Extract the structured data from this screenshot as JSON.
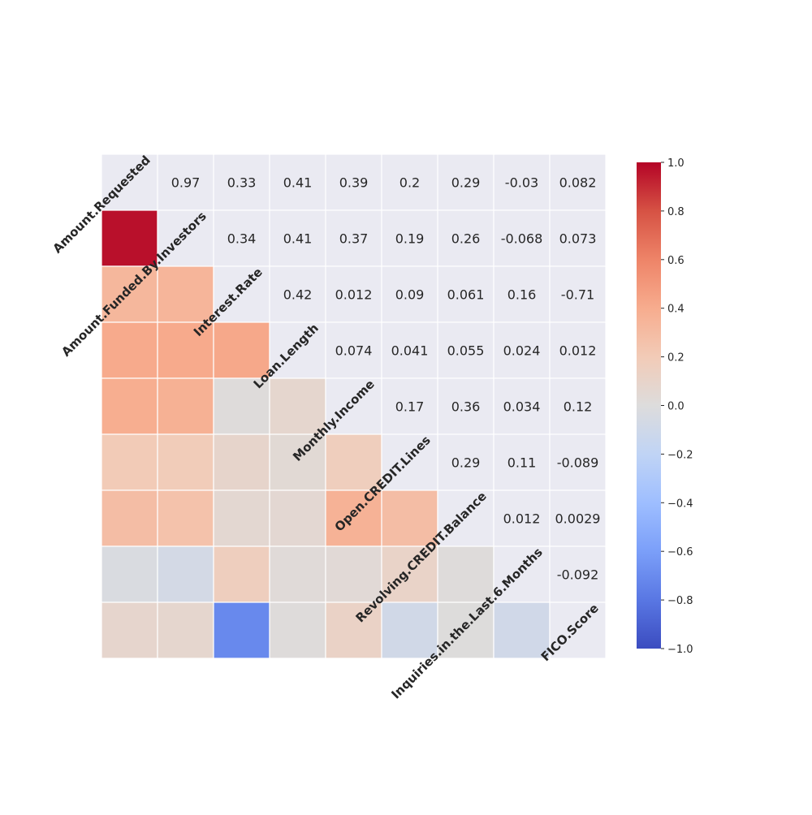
{
  "chart_data": {
    "type": "heatmap",
    "title": "",
    "variables": [
      "Amount.Requested",
      "Amount.Funded.By.Investors",
      "Interest.Rate",
      "Loan.Length",
      "Monthly.Income",
      "Open.CREDIT.Lines",
      "Revolving.CREDIT.Balance",
      "Inquiries.in.the.Last.6.Months",
      "FICO.Score"
    ],
    "upper_triangle_labels": [
      [
        "",
        "0.97",
        "0.33",
        "0.41",
        "0.39",
        "0.2",
        "0.29",
        "-0.03",
        "0.082"
      ],
      [
        "",
        "",
        "0.34",
        "0.41",
        "0.37",
        "0.19",
        "0.26",
        "-0.068",
        "0.073"
      ],
      [
        "",
        "",
        "",
        "0.42",
        "0.012",
        "0.09",
        "0.061",
        "0.16",
        "-0.71"
      ],
      [
        "",
        "",
        "",
        "",
        "0.074",
        "0.041",
        "0.055",
        "0.024",
        "0.012"
      ],
      [
        "",
        "",
        "",
        "",
        "",
        "0.17",
        "0.36",
        "0.034",
        "0.12"
      ],
      [
        "",
        "",
        "",
        "",
        "",
        "",
        "0.29",
        "0.11",
        "-0.089"
      ],
      [
        "",
        "",
        "",
        "",
        "",
        "",
        "",
        "0.012",
        "0.0029"
      ],
      [
        "",
        "",
        "",
        "",
        "",
        "",
        "",
        "",
        "-0.092"
      ],
      [
        "",
        "",
        "",
        "",
        "",
        "",
        "",
        "",
        ""
      ]
    ],
    "lower_triangle_values": [
      [],
      [
        0.97
      ],
      [
        0.33,
        0.34
      ],
      [
        0.41,
        0.41,
        0.42
      ],
      [
        0.39,
        0.37,
        0.012,
        0.074
      ],
      [
        0.2,
        0.19,
        0.09,
        0.041,
        0.17
      ],
      [
        0.29,
        0.26,
        0.061,
        0.055,
        0.36,
        0.29
      ],
      [
        -0.03,
        -0.068,
        0.16,
        0.024,
        0.034,
        0.11,
        0.012
      ],
      [
        0.082,
        0.073,
        -0.71,
        0.012,
        0.12,
        -0.089,
        0.0029,
        -0.092
      ]
    ],
    "colormap": "coolwarm",
    "vmin": -1.0,
    "vmax": 1.0,
    "colorbar_ticks": [
      "1.0",
      "0.8",
      "0.6",
      "0.4",
      "0.2",
      "0.0",
      "−0.2",
      "−0.4",
      "−0.6",
      "−0.8",
      "−1.0"
    ],
    "colors": {
      "background": "#eaeaf2",
      "grid": "#ffffff",
      "text": "#262626"
    }
  }
}
